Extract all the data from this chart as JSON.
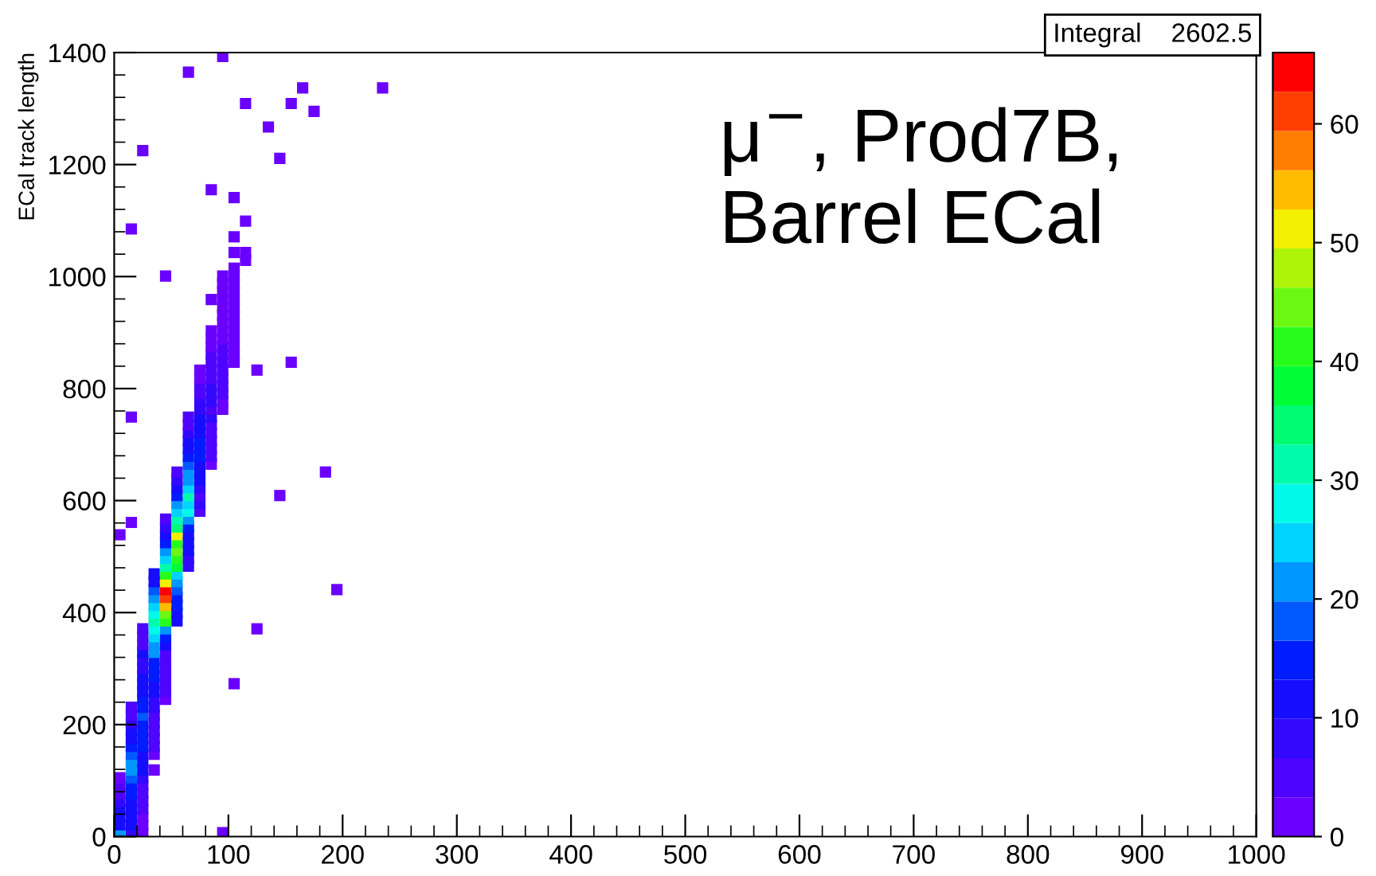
{
  "chart_data": {
    "type": "scatter",
    "ylabel": "ECal track length",
    "annotations": [
      "Integral    2602.5",
      "μ$^{−}$, Prod7B,\nBarrel ECal"
    ],
    "x": [
      5,
      15,
      25,
      5,
      15,
      25,
      5,
      15,
      25,
      5,
      15,
      25,
      5,
      15,
      25,
      5,
      15,
      25,
      15,
      5,
      25,
      15,
      25,
      5,
      15,
      25,
      35,
      15,
      25,
      15,
      25,
      35,
      15,
      25,
      35,
      25,
      15,
      35,
      25,
      15,
      35,
      25,
      15,
      35,
      25,
      15,
      35,
      25,
      35,
      15,
      25,
      35,
      45,
      25,
      35,
      45,
      25,
      35,
      45,
      35,
      25,
      45,
      35,
      25,
      45,
      35,
      25,
      45,
      35,
      25,
      45,
      35,
      45,
      25,
      35,
      45,
      25,
      35,
      45,
      25,
      45,
      35,
      55,
      45,
      35,
      55,
      45,
      35,
      55,
      45,
      35,
      55,
      45,
      35,
      55,
      45,
      55,
      35,
      45,
      55,
      35,
      55,
      45,
      65,
      55,
      45,
      65,
      55,
      45,
      65,
      55,
      45,
      65,
      55,
      45,
      65,
      55,
      65,
      45,
      55,
      65,
      45,
      65,
      55,
      75,
      65,
      55,
      75,
      65,
      55,
      75,
      65,
      55,
      75,
      65,
      75,
      55,
      65,
      75,
      55,
      65,
      75,
      85,
      75,
      65,
      85,
      75,
      65,
      85,
      75,
      65,
      85,
      75,
      65,
      85,
      75,
      85,
      65,
      75,
      85,
      65,
      75,
      85,
      95,
      85,
      75,
      95,
      85,
      75,
      95,
      85,
      75,
      95,
      85,
      95,
      75,
      85,
      95,
      75,
      85,
      95,
      105,
      85,
      95,
      105,
      95,
      85,
      105,
      95,
      85,
      105,
      95,
      85,
      105,
      95,
      105,
      95,
      105,
      95,
      105,
      95,
      105,
      85,
      105,
      95,
      105,
      95,
      105,
      95,
      105,
      115,
      105,
      115,
      105,
      115,
      105,
      195,
      185,
      155,
      125,
      145,
      105,
      125,
      95,
      235,
      165,
      175,
      95,
      65,
      135,
      145,
      25,
      115,
      155,
      85,
      15,
      45,
      15,
      5,
      15
    ],
    "values": [
      7,
      7,
      7,
      21,
      21,
      21,
      35,
      35,
      35,
      49,
      49,
      49,
      63,
      63,
      63,
      77,
      77,
      77,
      91,
      91,
      91,
      105,
      105,
      105,
      119,
      119,
      119,
      133,
      133,
      147,
      147,
      147,
      161,
      161,
      161,
      175,
      175,
      175,
      189,
      189,
      189,
      203,
      203,
      203,
      217,
      217,
      217,
      231,
      231,
      231,
      245,
      245,
      245,
      259,
      259,
      259,
      273,
      273,
      273,
      287,
      287,
      287,
      301,
      301,
      301,
      315,
      315,
      315,
      329,
      329,
      329,
      343,
      343,
      343,
      357,
      357,
      357,
      371,
      371,
      371,
      385,
      385,
      385,
      399,
      399,
      399,
      413,
      413,
      413,
      427,
      427,
      427,
      441,
      441,
      441,
      455,
      455,
      455,
      469,
      469,
      469,
      483,
      483,
      483,
      497,
      497,
      497,
      511,
      511,
      511,
      525,
      525,
      525,
      539,
      539,
      539,
      553,
      553,
      553,
      567,
      567,
      567,
      581,
      581,
      581,
      595,
      595,
      595,
      609,
      609,
      609,
      623,
      623,
      623,
      637,
      637,
      637,
      651,
      651,
      651,
      665,
      665,
      665,
      679,
      679,
      679,
      693,
      693,
      693,
      707,
      707,
      707,
      721,
      721,
      721,
      735,
      735,
      735,
      749,
      749,
      749,
      763,
      763,
      763,
      777,
      777,
      777,
      791,
      791,
      791,
      805,
      805,
      805,
      819,
      819,
      819,
      833,
      833,
      833,
      847,
      847,
      847,
      861,
      861,
      861,
      875,
      875,
      875,
      889,
      889,
      889,
      903,
      903,
      903,
      917,
      917,
      931,
      931,
      945,
      945,
      959,
      959,
      959,
      973,
      973,
      987,
      987,
      1001,
      1001,
      1015,
      1029,
      1043,
      1043,
      1071,
      1099,
      1141,
      441,
      651,
      847,
      833,
      609,
      273,
      371,
      7,
      1337,
      1337,
      1295,
      1393,
      1365,
      1267,
      1211,
      1225,
      1309,
      1309,
      1155,
      1085,
      1001,
      749,
      539,
      561
    ],
    "cvalues": [
      20,
      8,
      3,
      12,
      10,
      2,
      10,
      12,
      3,
      10,
      10,
      6,
      8,
      12,
      5,
      6,
      15,
      4,
      14,
      4,
      6,
      18,
      8,
      2,
      20,
      10,
      2,
      22,
      10,
      18,
      12,
      3,
      16,
      14,
      4,
      16,
      12,
      5,
      14,
      10,
      6,
      15,
      8,
      6,
      17,
      6,
      5,
      15,
      8,
      4,
      14,
      8,
      3,
      12,
      10,
      4,
      12,
      12,
      6,
      14,
      10,
      6,
      16,
      8,
      5,
      14,
      9,
      4,
      20,
      10,
      6,
      22,
      10,
      6,
      24,
      14,
      5,
      28,
      22,
      6,
      40,
      30,
      10,
      45,
      28,
      12,
      55,
      24,
      14,
      60,
      20,
      16,
      65,
      18,
      18,
      50,
      22,
      12,
      42,
      26,
      10,
      38,
      30,
      8,
      42,
      24,
      8,
      45,
      20,
      10,
      40,
      14,
      12,
      50,
      10,
      12,
      36,
      16,
      8,
      30,
      20,
      6,
      28,
      24,
      6,
      26,
      20,
      8,
      30,
      16,
      6,
      25,
      12,
      8,
      22,
      10,
      8,
      20,
      12,
      6,
      18,
      12,
      3,
      16,
      14,
      4,
      14,
      12,
      5,
      15,
      10,
      4,
      12,
      8,
      6,
      12,
      6,
      5,
      10,
      8,
      4,
      9,
      6,
      3,
      8,
      8,
      3,
      8,
      6,
      4,
      7,
      5,
      4,
      6,
      4,
      3,
      6,
      5,
      3,
      5,
      4,
      2,
      4,
      4,
      2,
      4,
      3,
      2,
      3,
      3,
      2,
      3,
      2,
      2,
      3,
      2,
      2,
      3,
      2,
      2,
      2,
      2,
      1,
      2,
      1,
      2,
      1,
      1,
      1,
      2,
      1,
      1,
      1,
      1,
      1,
      1,
      1,
      1,
      1,
      1,
      1,
      1,
      1,
      1,
      1,
      1,
      1,
      1,
      1,
      1,
      1,
      1,
      1,
      1,
      1,
      1,
      1,
      1,
      1,
      1
    ],
    "marker": "square",
    "xlim": [
      0,
      1000
    ],
    "ylim": [
      0,
      1400
    ],
    "xticks": [
      0,
      100,
      200,
      300,
      400,
      500,
      600,
      700,
      800,
      900,
      1000
    ],
    "yticks": [
      0,
      200,
      400,
      600,
      800,
      1000,
      1200,
      1400
    ],
    "clim": [
      0,
      66
    ],
    "cticks": [
      0,
      10,
      20,
      30,
      40,
      50,
      60
    ],
    "grid": false,
    "legend": false
  }
}
